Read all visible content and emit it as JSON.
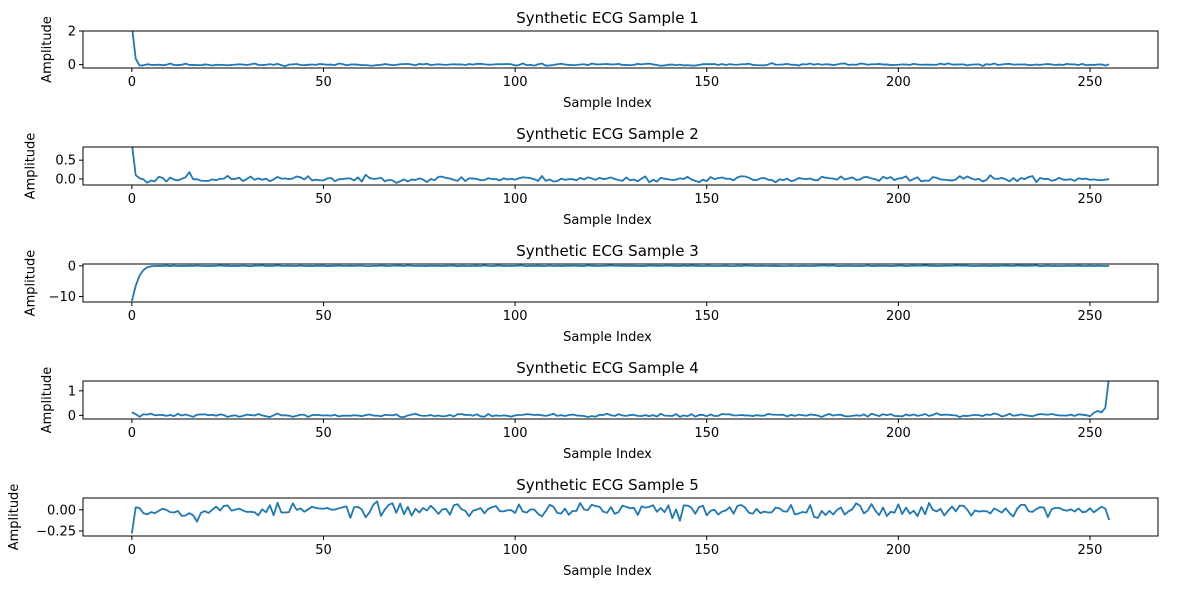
{
  "chart_data": [
    {
      "type": "line",
      "title": "Synthetic ECG Sample 1",
      "xlabel": "Sample Index",
      "ylabel": "Amplitude",
      "xlim": [
        -12.75,
        267.75
      ],
      "ylim": [
        -0.2,
        2.0
      ],
      "xticks": [
        0,
        50,
        100,
        150,
        200,
        250
      ],
      "yticks": [
        0,
        2
      ],
      "color": "#1f77b4",
      "n": 256,
      "key_points": [
        [
          0,
          2.3
        ],
        [
          1,
          0.35
        ],
        [
          2,
          -0.05
        ],
        [
          3,
          -0.04
        ],
        [
          4,
          0.02
        ],
        [
          5,
          -0.01
        ]
      ],
      "noise_amp": 0.05,
      "seed": 11
    },
    {
      "type": "line",
      "title": "Synthetic ECG Sample 2",
      "xlabel": "Sample Index",
      "ylabel": "Amplitude",
      "xlim": [
        -12.75,
        267.75
      ],
      "ylim": [
        -0.16,
        0.85
      ],
      "xticks": [
        0,
        50,
        100,
        150,
        200,
        250
      ],
      "yticks": [
        0.0,
        0.5
      ],
      "color": "#1f77b4",
      "n": 256,
      "key_points": [
        [
          0,
          0.95
        ],
        [
          1,
          0.1
        ],
        [
          2,
          0.02
        ],
        [
          3,
          -0.01
        ],
        [
          4,
          -0.1
        ],
        [
          5,
          -0.04
        ],
        [
          15,
          0.18
        ]
      ],
      "noise_amp": 0.06,
      "seed": 23
    },
    {
      "type": "line",
      "title": "Synthetic ECG Sample 3",
      "xlabel": "Sample Index",
      "ylabel": "Amplitude",
      "xlim": [
        -12.75,
        267.75
      ],
      "ylim": [
        -11.8,
        0.6
      ],
      "xticks": [
        0,
        50,
        100,
        150,
        200,
        250
      ],
      "yticks": [
        -10,
        0
      ],
      "color": "#1f77b4",
      "n": 256,
      "key_points": [
        [
          0,
          -11.5
        ],
        [
          1,
          -6.5
        ],
        [
          2,
          -3.2
        ],
        [
          3,
          -1.4
        ],
        [
          4,
          -0.5
        ],
        [
          5,
          -0.15
        ],
        [
          6,
          -0.05
        ]
      ],
      "noise_amp": 0.08,
      "seed": 37
    },
    {
      "type": "line",
      "title": "Synthetic ECG Sample 4",
      "xlabel": "Sample Index",
      "ylabel": "Amplitude",
      "xlim": [
        -12.75,
        267.75
      ],
      "ylim": [
        -0.15,
        1.4
      ],
      "xticks": [
        0,
        50,
        100,
        150,
        200,
        250
      ],
      "yticks": [
        0,
        1
      ],
      "color": "#1f77b4",
      "n": 256,
      "key_points": [
        [
          0,
          0.12
        ],
        [
          1,
          0.05
        ],
        [
          251,
          0.1
        ],
        [
          252,
          0.18
        ],
        [
          253,
          0.12
        ],
        [
          254,
          0.3
        ],
        [
          255,
          1.6
        ]
      ],
      "noise_amp": 0.05,
      "seed": 41
    },
    {
      "type": "line",
      "title": "Synthetic ECG Sample 5",
      "xlabel": "Sample Index",
      "ylabel": "Amplitude",
      "xlim": [
        -12.75,
        267.75
      ],
      "ylim": [
        -0.31,
        0.14
      ],
      "xticks": [
        0,
        50,
        100,
        150,
        200,
        250
      ],
      "yticks": [
        -0.25,
        0.0
      ],
      "color": "#1f77b4",
      "n": 256,
      "key_points": [
        [
          0,
          -0.28
        ],
        [
          1,
          0.03
        ],
        [
          2,
          0.02
        ],
        [
          3,
          -0.04
        ],
        [
          17,
          -0.14
        ],
        [
          141,
          -0.1
        ],
        [
          143,
          -0.13
        ],
        [
          255,
          -0.12
        ]
      ],
      "noise_amp": 0.06,
      "seed": 53
    }
  ]
}
